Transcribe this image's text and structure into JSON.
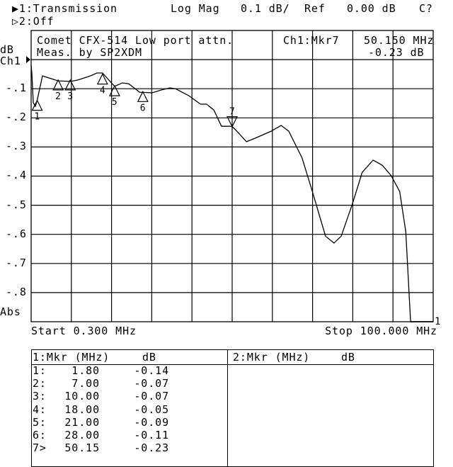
{
  "header": {
    "ch1_label": "▶1:Transmission",
    "format": "Log Mag",
    "scale": "0.1 dB/",
    "ref_label": "Ref",
    "ref_value": "0.00 dB",
    "cal_status": "C?",
    "ch2_label": "▷2:Off"
  },
  "annotation": {
    "title_line1": "Comet CFX-514 Low port attn.",
    "title_line2": "Meas. by SP2XDM",
    "active_marker": "Ch1:Mkr7",
    "active_marker_freq": "50.150 MHz",
    "active_marker_value": "-0.23 dB"
  },
  "axis_labels": {
    "unit": "dB",
    "channel": "Ch1",
    "abs": "Abs",
    "start": "Start 0.300 MHz",
    "stop": "Stop 100.000 MHz"
  },
  "chart_data": {
    "type": "line",
    "xlabel": "",
    "ylabel": "dB",
    "xlim": [
      0.3,
      100.0
    ],
    "ylim": [
      -0.9,
      0.1
    ],
    "x_scale": "linear",
    "grid": true,
    "x_divisions": 10,
    "y_ticks": [
      {
        "value": -0.1,
        "label": "-.1"
      },
      {
        "value": -0.2,
        "label": "-.2"
      },
      {
        "value": -0.3,
        "label": "-.3"
      },
      {
        "value": -0.4,
        "label": "-.4"
      },
      {
        "value": -0.5,
        "label": "-.5"
      },
      {
        "value": -0.6,
        "label": "-.6"
      },
      {
        "value": -0.7,
        "label": "-.7"
      },
      {
        "value": -0.8,
        "label": "-.8"
      }
    ],
    "reference_value": 0.0,
    "series": [
      {
        "x": [
          0.3,
          0.48,
          0.83,
          1.35,
          1.8,
          3.1,
          7.0,
          10.1,
          11.9,
          15.0,
          16.6,
          18.0,
          21.0,
          22.9,
          24.5,
          27.2,
          30.3,
          32.4,
          34.7,
          36.1,
          39.4,
          42.3,
          43.8,
          45.6,
          47.5,
          49.6,
          50.15,
          51.0,
          53.7,
          55.8,
          59.8,
          62.3,
          64.2,
          67.5,
          70.2,
          73.3,
          75.4,
          77.2,
          80.0,
          82.4,
          85.1,
          87.4,
          89.6,
          91.7,
          93.2,
          94.4,
          100.0
        ],
        "y": [
          -0.02,
          -0.046,
          -0.148,
          -0.16,
          -0.14,
          -0.056,
          -0.073,
          -0.075,
          -0.07,
          -0.056,
          -0.046,
          -0.046,
          -0.092,
          -0.08,
          -0.083,
          -0.112,
          -0.114,
          -0.105,
          -0.097,
          -0.1,
          -0.124,
          -0.153,
          -0.153,
          -0.173,
          -0.229,
          -0.229,
          -0.23,
          -0.241,
          -0.282,
          -0.27,
          -0.246,
          -0.226,
          -0.246,
          -0.338,
          -0.46,
          -0.606,
          -0.63,
          -0.606,
          -0.494,
          -0.387,
          -0.345,
          -0.363,
          -0.399,
          -0.453,
          -0.591,
          -0.9,
          -0.9
        ]
      }
    ],
    "markers": [
      {
        "label": "1",
        "freq": 1.8,
        "value": -0.14
      },
      {
        "label": "2",
        "freq": 7.0,
        "value": -0.07
      },
      {
        "label": "3",
        "freq": 10.0,
        "value": -0.07
      },
      {
        "label": "4",
        "freq": 18.0,
        "value": -0.05
      },
      {
        "label": "5",
        "freq": 21.0,
        "value": -0.09
      },
      {
        "label": "6",
        "freq": 28.0,
        "value": -0.11
      },
      {
        "label": "7",
        "freq": 50.15,
        "value": -0.23,
        "active": true
      }
    ],
    "end_label": "1"
  },
  "marker_table": {
    "ch1_header_mkr": "1:Mkr (MHz)",
    "ch1_header_db": "dB",
    "ch2_header_mkr": "2:Mkr (MHz)",
    "ch2_header_db": "dB",
    "rows": [
      {
        "id": "1:",
        "freq": "1.80",
        "db": "-0.14"
      },
      {
        "id": "2:",
        "freq": "7.00",
        "db": "-0.07"
      },
      {
        "id": "3:",
        "freq": "10.00",
        "db": "-0.07"
      },
      {
        "id": "4:",
        "freq": "18.00",
        "db": "-0.05"
      },
      {
        "id": "5:",
        "freq": "21.00",
        "db": "-0.09"
      },
      {
        "id": "6:",
        "freq": "28.00",
        "db": "-0.11"
      },
      {
        "id": "7>",
        "freq": "50.15",
        "db": "-0.23"
      }
    ]
  }
}
